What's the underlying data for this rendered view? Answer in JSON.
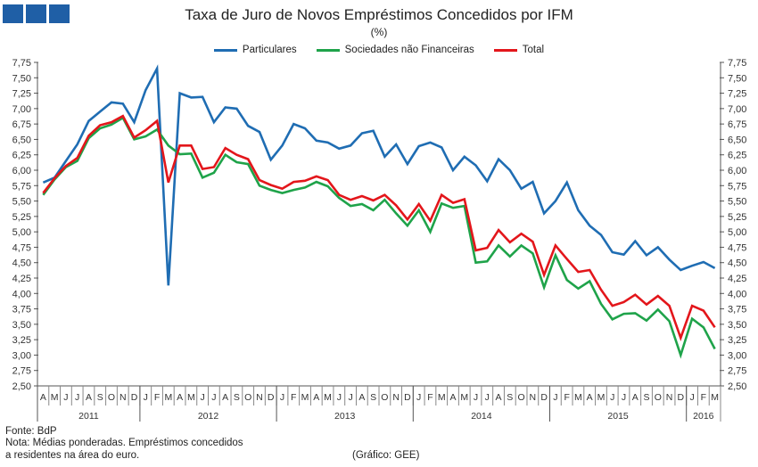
{
  "logo": {
    "description_squares": 3,
    "color": "#1f5fa6"
  },
  "chart_data": {
    "type": "line",
    "title": "Taxa de Juro de Novos Empréstimos Concedidos por IFM",
    "subtitle": "(%)",
    "ylim": [
      2.5,
      7.75
    ],
    "yticks": [
      "2,50",
      "2,75",
      "3,00",
      "3,25",
      "3,50",
      "3,75",
      "4,00",
      "4,25",
      "4,50",
      "4,75",
      "5,00",
      "5,25",
      "5,50",
      "5,75",
      "6,00",
      "6,25",
      "6,50",
      "6,75",
      "7,00",
      "7,25",
      "7,50",
      "7,75"
    ],
    "ytick_values": [
      2.5,
      2.75,
      3,
      3.25,
      3.5,
      3.75,
      4,
      4.25,
      4.5,
      4.75,
      5,
      5.25,
      5.5,
      5.75,
      6,
      6.25,
      6.5,
      6.75,
      7,
      7.25,
      7.5,
      7.75
    ],
    "axes": "left and right, identical",
    "grid": false,
    "legend_position": "top",
    "x_months": [
      "A",
      "M",
      "J",
      "J",
      "A",
      "S",
      "O",
      "N",
      "D",
      "J",
      "F",
      "M",
      "A",
      "M",
      "J",
      "J",
      "A",
      "S",
      "O",
      "N",
      "D",
      "J",
      "F",
      "M",
      "A",
      "M",
      "J",
      "J",
      "A",
      "S",
      "O",
      "N",
      "D",
      "J",
      "F",
      "M",
      "A",
      "M",
      "J",
      "J",
      "A",
      "S",
      "O",
      "N",
      "D",
      "J",
      "F",
      "M",
      "A",
      "M",
      "J",
      "J",
      "A",
      "S",
      "O",
      "N",
      "D",
      "J",
      "F",
      "M"
    ],
    "x_years": [
      {
        "label": "2011",
        "months": 9
      },
      {
        "label": "2012",
        "months": 12
      },
      {
        "label": "2013",
        "months": 12
      },
      {
        "label": "2014",
        "months": 12
      },
      {
        "label": "2015",
        "months": 12
      },
      {
        "label": "2016",
        "months": 3
      }
    ],
    "series": [
      {
        "name": "Particulares",
        "color": "#1f6db3",
        "values": [
          5.8,
          5.88,
          6.15,
          6.42,
          6.8,
          6.95,
          7.1,
          7.08,
          6.78,
          7.3,
          7.65,
          4.13,
          7.25,
          7.18,
          7.19,
          6.78,
          7.02,
          7.0,
          6.72,
          6.62,
          6.17,
          6.4,
          6.75,
          6.68,
          6.48,
          6.45,
          6.35,
          6.4,
          6.6,
          6.64,
          6.22,
          6.42,
          6.1,
          6.39,
          6.45,
          6.37,
          6.0,
          6.22,
          6.08,
          5.82,
          6.18,
          6.0,
          5.7,
          5.81,
          5.3,
          5.5,
          5.8,
          5.35,
          5.1,
          4.95,
          4.67,
          4.63,
          4.85,
          4.62,
          4.75,
          4.55,
          4.38,
          4.45,
          4.51,
          4.41
        ]
      },
      {
        "name": "Sociedades não Financeiras",
        "color": "#1fa34a",
        "values": [
          5.6,
          5.85,
          6.05,
          6.15,
          6.52,
          6.68,
          6.74,
          6.85,
          6.5,
          6.55,
          6.66,
          6.4,
          6.26,
          6.27,
          5.88,
          5.96,
          6.25,
          6.13,
          6.1,
          5.75,
          5.68,
          5.63,
          5.68,
          5.72,
          5.81,
          5.74,
          5.55,
          5.42,
          5.45,
          5.35,
          5.52,
          5.3,
          5.1,
          5.35,
          5.0,
          5.46,
          5.39,
          5.42,
          4.5,
          4.52,
          4.78,
          4.6,
          4.78,
          4.65,
          4.1,
          4.62,
          4.22,
          4.08,
          4.2,
          3.83,
          3.58,
          3.67,
          3.68,
          3.56,
          3.74,
          3.55,
          3.0,
          3.59,
          3.45,
          3.1
        ]
      },
      {
        "name": "Total",
        "color": "#e3161b",
        "values": [
          5.63,
          5.87,
          6.07,
          6.2,
          6.56,
          6.73,
          6.78,
          6.88,
          6.53,
          6.65,
          6.8,
          5.8,
          6.4,
          6.4,
          6.02,
          6.05,
          6.36,
          6.25,
          6.18,
          5.84,
          5.76,
          5.7,
          5.81,
          5.83,
          5.9,
          5.84,
          5.6,
          5.52,
          5.58,
          5.51,
          5.6,
          5.43,
          5.2,
          5.45,
          5.18,
          5.6,
          5.47,
          5.53,
          4.7,
          4.74,
          5.03,
          4.83,
          4.97,
          4.84,
          4.3,
          4.78,
          4.56,
          4.35,
          4.38,
          4.06,
          3.8,
          3.86,
          3.98,
          3.82,
          3.96,
          3.8,
          3.28,
          3.8,
          3.72,
          3.45
        ]
      }
    ]
  },
  "footer": {
    "source": "Fonte: BdP",
    "note_line1": "Nota: Médias ponderadas. Empréstimos concedidos",
    "note_line2": "a residentes na área do euro.",
    "credit": "(Gráfico: GEE)"
  }
}
